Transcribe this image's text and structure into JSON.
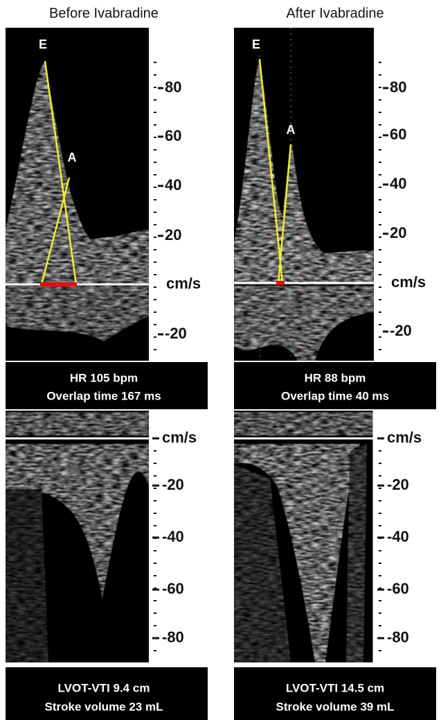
{
  "columns": [
    {
      "title": "Before Ivabradine",
      "top_scale": [
        "80",
        "60",
        "40",
        "20",
        "cm/s",
        "-20"
      ],
      "top_markers": [
        "E",
        "A"
      ],
      "top_caption": [
        "HR 105 bpm",
        "Overlap time 167 ms"
      ],
      "bottom_scale": [
        "cm/s",
        "-20",
        "-40",
        "-60",
        "-80"
      ],
      "bottom_caption": [
        "LVOT-VTI  9.4 cm",
        "Stroke volume 23 mL"
      ]
    },
    {
      "title": "After Ivabradine",
      "top_scale": [
        "80",
        "60",
        "40",
        "20",
        "cm/s",
        "-20"
      ],
      "top_markers": [
        "E",
        "A"
      ],
      "top_caption": [
        "HR 88 bpm",
        "Overlap time 40 ms"
      ],
      "bottom_scale": [
        "cm/s",
        "-20",
        "-40",
        "-60",
        "-80"
      ],
      "bottom_caption": [
        "LVOT-VTI  14.5 cm",
        "Stroke volume 39 mL"
      ]
    }
  ]
}
